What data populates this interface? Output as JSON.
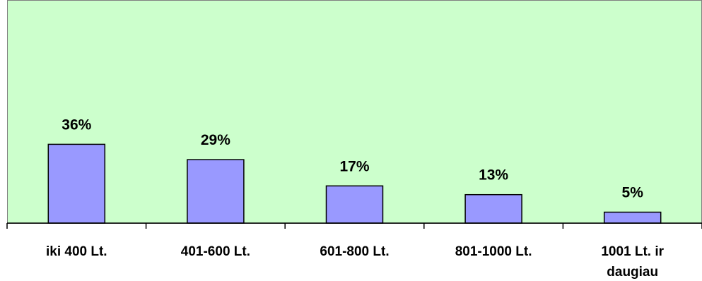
{
  "chart_data": {
    "type": "bar",
    "categories": [
      [
        "iki 400 Lt."
      ],
      [
        "401-600 Lt."
      ],
      [
        "601-800 Lt."
      ],
      [
        "801-1000 Lt."
      ],
      [
        "1001 Lt. ir",
        "daugiau"
      ]
    ],
    "values": [
      36,
      29,
      17,
      13,
      5
    ],
    "data_labels": [
      "36%",
      "29%",
      "17%",
      "13%",
      "5%"
    ],
    "ylim": [
      0,
      100
    ],
    "grid": false,
    "legend": "none",
    "colors": {
      "plot_background": "#ccffcc",
      "bar_fill": "#9999ff",
      "bar_stroke": "#000000"
    }
  }
}
